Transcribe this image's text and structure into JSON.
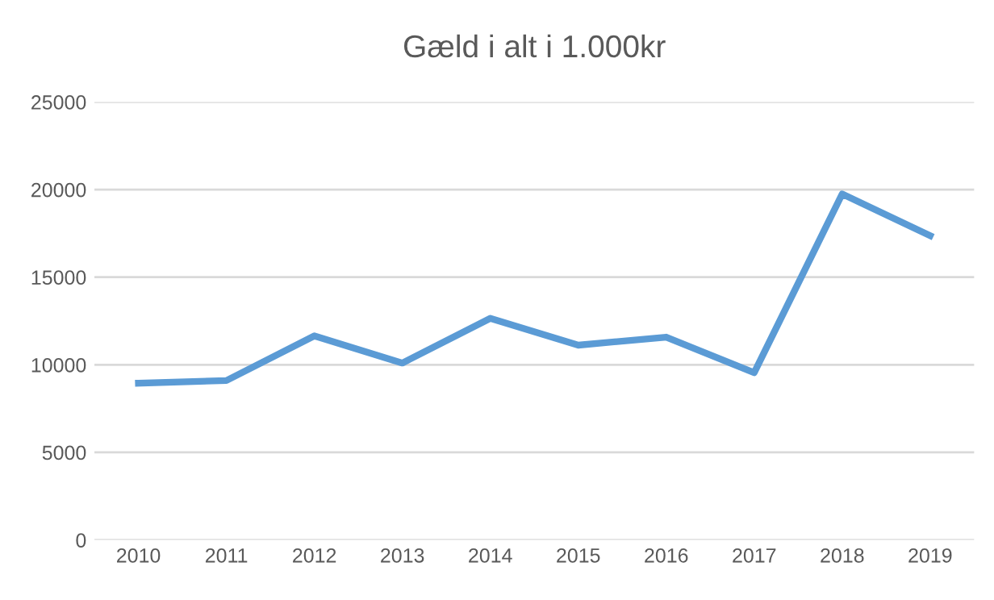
{
  "chart_data": {
    "type": "line",
    "title": "Gæld i alt i 1.000kr",
    "categories": [
      "2010",
      "2011",
      "2012",
      "2013",
      "2014",
      "2015",
      "2016",
      "2017",
      "2018",
      "2019"
    ],
    "series": [
      {
        "color": "#5b9bd5",
        "values": [
          8950,
          9100,
          11650,
          10100,
          12650,
          11120,
          11580,
          9550,
          19750,
          17370
        ]
      }
    ],
    "ylim": [
      0,
      25000
    ],
    "yticks": [
      0,
      5000,
      10000,
      15000,
      20000,
      25000
    ],
    "grid": "y",
    "legend": false,
    "marker": "none",
    "line_style": "solid"
  }
}
